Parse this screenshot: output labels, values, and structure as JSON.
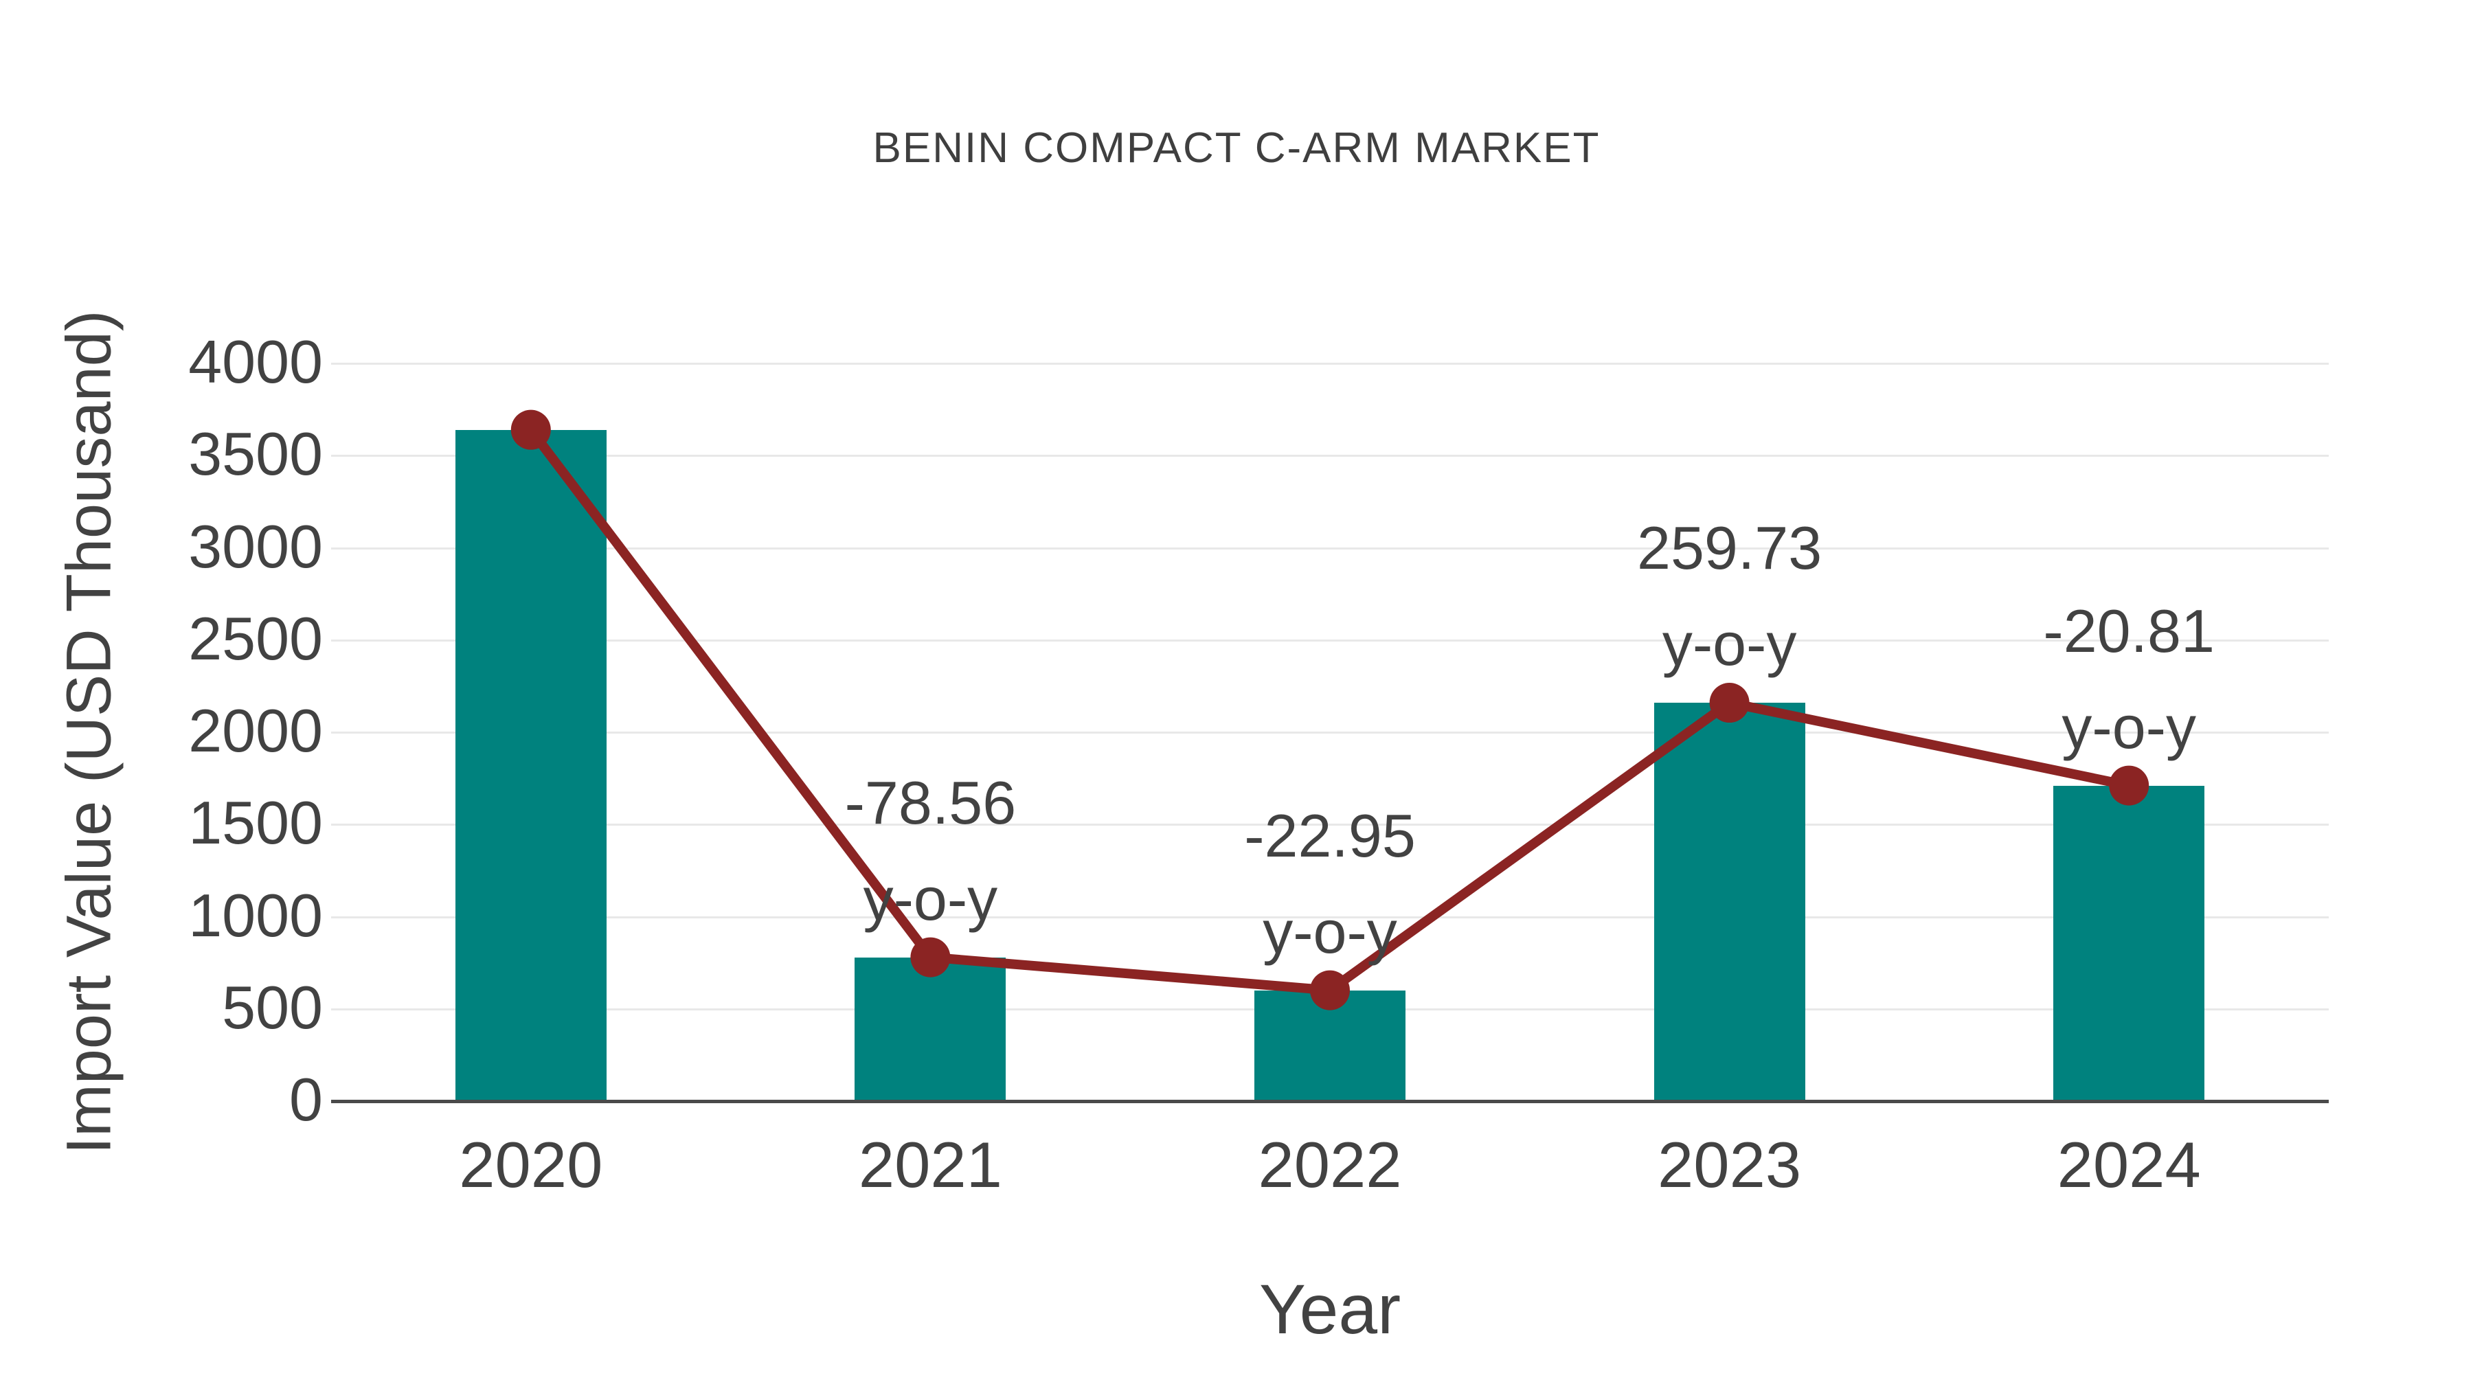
{
  "page": {
    "background": "#ffffff"
  },
  "chart_data": {
    "type": "bar",
    "title": "BENIN COMPACT C-ARM MARKET",
    "xlabel": "Year",
    "ylabel": "Import Value (USD Thousand)",
    "categories": [
      "2020",
      "2021",
      "2022",
      "2023",
      "2024"
    ],
    "series": [
      {
        "name": "import-value-bars",
        "type": "bar",
        "color": "#00827E",
        "values": [
          3640,
          780,
          601,
          2160,
          1711
        ]
      },
      {
        "name": "import-value-trend-line",
        "type": "line",
        "color": "#8B2423",
        "values": [
          3640,
          780,
          601,
          2160,
          1711
        ]
      }
    ],
    "annotations": [
      {
        "category": "2021",
        "line1": "-78.56",
        "line2": "y-o-y"
      },
      {
        "category": "2022",
        "line1": "-22.95",
        "line2": "y-o-y"
      },
      {
        "category": "2023",
        "line1": "259.73",
        "line2": "y-o-y"
      },
      {
        "category": "2024",
        "line1": "-20.81",
        "line2": "y-o-y"
      }
    ],
    "ylim": [
      0,
      4000
    ],
    "yticks": [
      0,
      500,
      1000,
      1500,
      2000,
      2500,
      3000,
      3500,
      4000
    ],
    "grid": true,
    "legend_position": "none",
    "colors": {
      "bar": "#00827E",
      "line": "#8B2423",
      "marker": "#8B2423",
      "text": "#424242",
      "grid": "#e8e8e8",
      "axis": "#4a4a4a",
      "background": "#ffffff"
    }
  }
}
